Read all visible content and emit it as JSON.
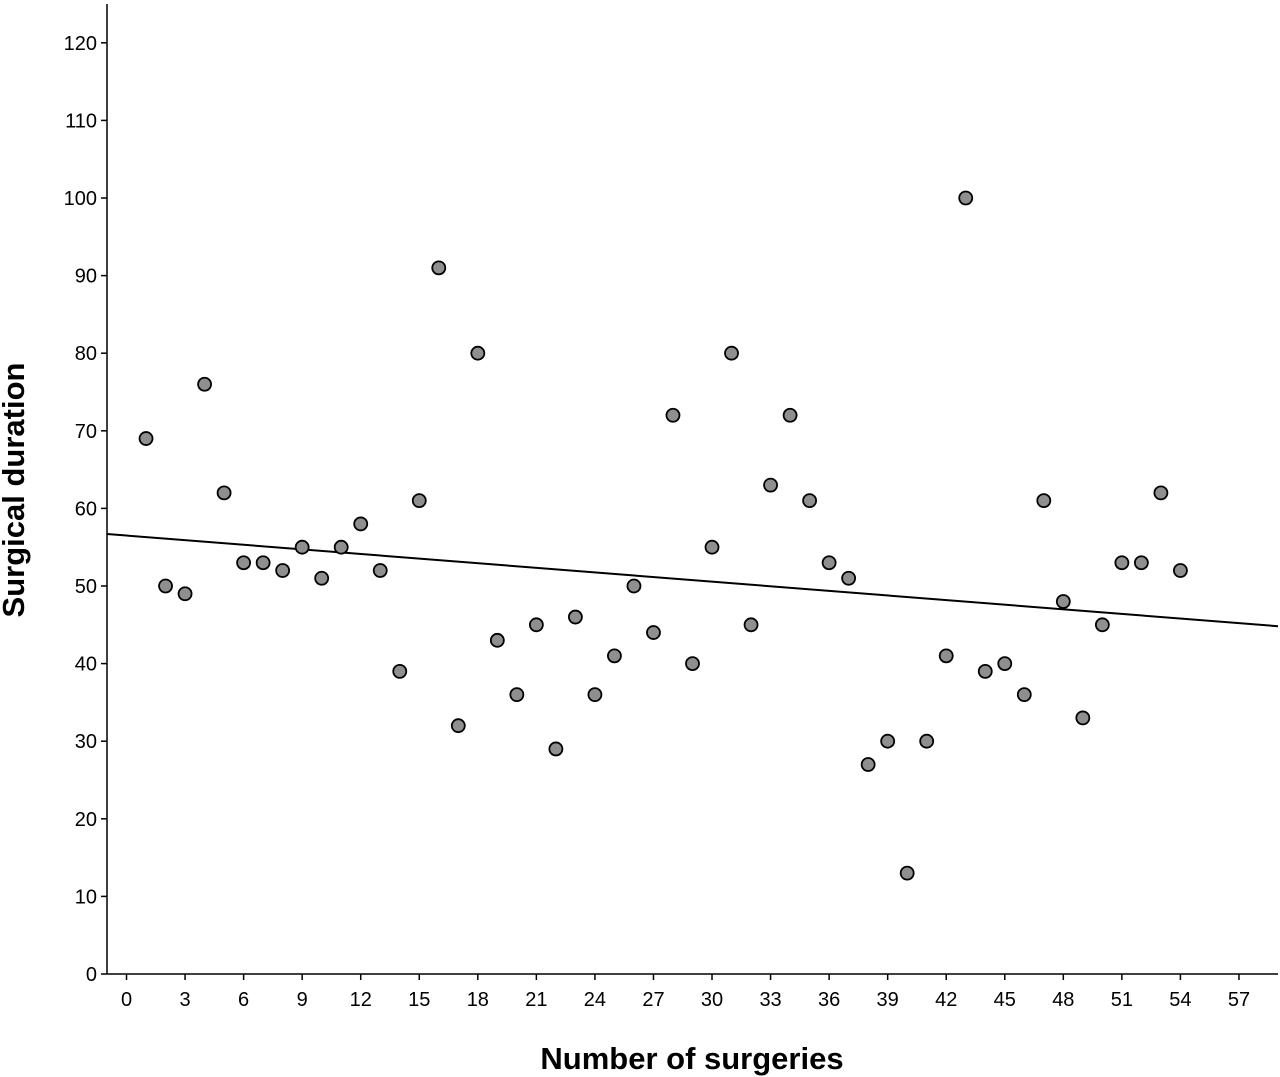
{
  "chart_data": {
    "type": "scatter",
    "title": "",
    "xlabel": "Number of surgeries",
    "ylabel": "Surgical duration",
    "xlim": [
      -1,
      59
    ],
    "ylim": [
      0,
      125
    ],
    "x_ticks": [
      0,
      3,
      6,
      9,
      12,
      15,
      18,
      21,
      24,
      27,
      30,
      33,
      36,
      39,
      42,
      45,
      48,
      51,
      54,
      57
    ],
    "y_ticks": [
      0,
      10,
      20,
      30,
      40,
      50,
      60,
      70,
      80,
      90,
      100,
      110,
      120
    ],
    "grid": false,
    "legend": "none",
    "marker_color": "#8f8f8f",
    "marker_edge_color": "#000000",
    "fit_line": {
      "type": "linear",
      "intercept": 56.5,
      "slope": -0.198,
      "color": "#000000"
    },
    "points": [
      {
        "x": 1,
        "y": 69
      },
      {
        "x": 2,
        "y": 50
      },
      {
        "x": 3,
        "y": 49
      },
      {
        "x": 4,
        "y": 76
      },
      {
        "x": 5,
        "y": 62
      },
      {
        "x": 6,
        "y": 53
      },
      {
        "x": 7,
        "y": 53
      },
      {
        "x": 8,
        "y": 52
      },
      {
        "x": 9,
        "y": 55
      },
      {
        "x": 10,
        "y": 51
      },
      {
        "x": 11,
        "y": 55
      },
      {
        "x": 12,
        "y": 58
      },
      {
        "x": 13,
        "y": 52
      },
      {
        "x": 14,
        "y": 39
      },
      {
        "x": 15,
        "y": 61
      },
      {
        "x": 16,
        "y": 91
      },
      {
        "x": 17,
        "y": 32
      },
      {
        "x": 18,
        "y": 80
      },
      {
        "x": 19,
        "y": 43
      },
      {
        "x": 20,
        "y": 36
      },
      {
        "x": 21,
        "y": 45
      },
      {
        "x": 22,
        "y": 29
      },
      {
        "x": 23,
        "y": 46
      },
      {
        "x": 24,
        "y": 36
      },
      {
        "x": 25,
        "y": 41
      },
      {
        "x": 26,
        "y": 50
      },
      {
        "x": 27,
        "y": 44
      },
      {
        "x": 28,
        "y": 72
      },
      {
        "x": 29,
        "y": 40
      },
      {
        "x": 30,
        "y": 55
      },
      {
        "x": 31,
        "y": 80
      },
      {
        "x": 32,
        "y": 45
      },
      {
        "x": 33,
        "y": 63
      },
      {
        "x": 34,
        "y": 72
      },
      {
        "x": 35,
        "y": 61
      },
      {
        "x": 36,
        "y": 53
      },
      {
        "x": 37,
        "y": 51
      },
      {
        "x": 38,
        "y": 27
      },
      {
        "x": 39,
        "y": 30
      },
      {
        "x": 40,
        "y": 13
      },
      {
        "x": 41,
        "y": 30
      },
      {
        "x": 42,
        "y": 41
      },
      {
        "x": 43,
        "y": 100
      },
      {
        "x": 44,
        "y": 39
      },
      {
        "x": 45,
        "y": 40
      },
      {
        "x": 46,
        "y": 36
      },
      {
        "x": 47,
        "y": 61
      },
      {
        "x": 48,
        "y": 48
      },
      {
        "x": 49,
        "y": 33
      },
      {
        "x": 50,
        "y": 45
      },
      {
        "x": 51,
        "y": 53
      },
      {
        "x": 52,
        "y": 53
      },
      {
        "x": 53,
        "y": 62
      },
      {
        "x": 54,
        "y": 52
      }
    ]
  }
}
